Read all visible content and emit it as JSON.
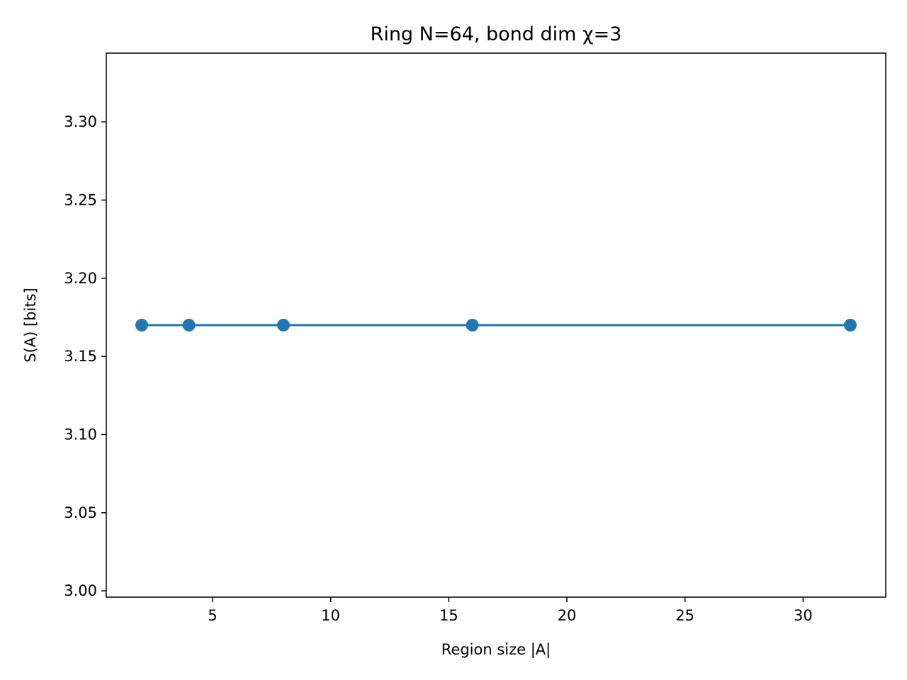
{
  "chart_data": {
    "type": "line",
    "title": "Ring N=64, bond dim χ=3",
    "xlabel": "Region size |A|",
    "ylabel": "S(A) [bits]",
    "x": [
      2,
      4,
      8,
      16,
      32
    ],
    "series": [
      {
        "name": "S(A)",
        "values": [
          3.17,
          3.17,
          3.17,
          3.17,
          3.17
        ]
      }
    ],
    "xlim": [
      0.5,
      33.5
    ],
    "ylim": [
      2.996,
      3.344
    ],
    "xticks": [
      5,
      10,
      15,
      20,
      25,
      30
    ],
    "xtick_labels": [
      "5",
      "10",
      "15",
      "20",
      "25",
      "30"
    ],
    "yticks": [
      3.0,
      3.05,
      3.1,
      3.15,
      3.2,
      3.25,
      3.3
    ],
    "ytick_labels": [
      "3.00",
      "3.05",
      "3.10",
      "3.15",
      "3.20",
      "3.25",
      "3.30"
    ],
    "grid": false,
    "colors": {
      "series": "#1f77b4",
      "axes": "#000000"
    }
  }
}
